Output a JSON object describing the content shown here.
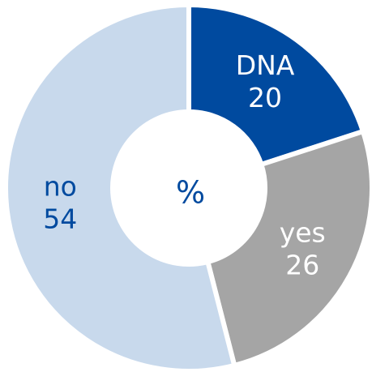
{
  "chart_data": {
    "type": "donut",
    "center_label": "%",
    "categories": [
      "DNA",
      "yes",
      "no"
    ],
    "values": [
      20,
      26,
      54
    ],
    "colors": [
      "#004a9f",
      "#a5a5a5",
      "#c8d9ec"
    ],
    "label_colors": [
      "#ffffff",
      "#ffffff",
      "#004a9f"
    ]
  }
}
